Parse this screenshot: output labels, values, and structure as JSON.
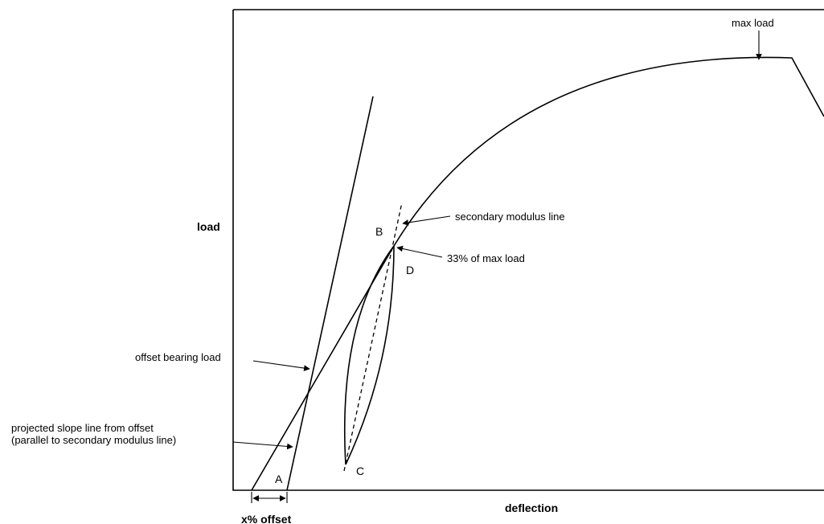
{
  "axes": {
    "y_label": "load",
    "x_label": "deflection"
  },
  "annotations": {
    "max_load": "max load",
    "secondary_modulus_line": "secondary modulus line",
    "pct_max_load": "33% of max load",
    "offset_bearing_load": "offset bearing load",
    "projected_slope_line_1": "projected slope line from offset",
    "projected_slope_line_2": "(parallel to secondary modulus line)",
    "x_offset": "x% offset"
  },
  "points": {
    "A": "A",
    "B": "B",
    "C": "C",
    "D": "D"
  }
}
